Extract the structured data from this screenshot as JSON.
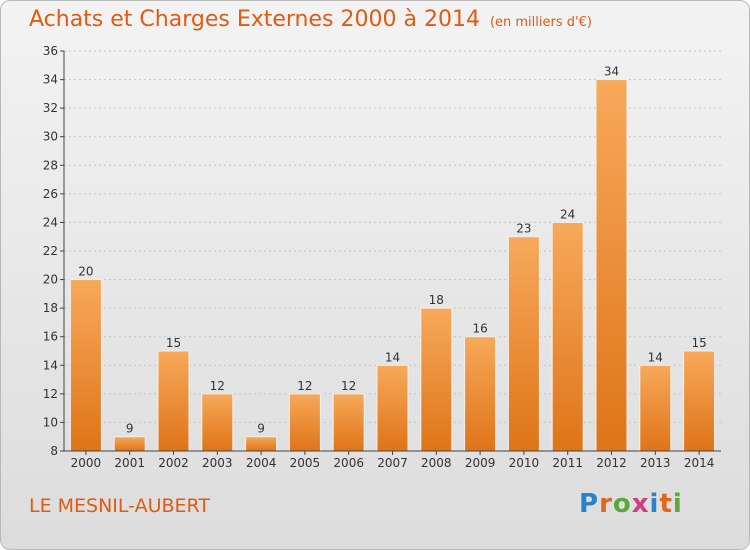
{
  "header": {
    "title": "Achats et Charges Externes 2000 à 2014",
    "unit": "(en milliers d'€)"
  },
  "footer": {
    "commune": "LE MESNIL-AUBERT",
    "logo_text": "Proxiti"
  },
  "colors": {
    "accent": "#e05a12",
    "bar_top": "#f7a95a",
    "bar_bottom": "#e0771c",
    "axis": "#444444",
    "grid": "#bdbdbd"
  },
  "chart_data": {
    "type": "bar",
    "title": "Achats et Charges Externes 2000 à 2014",
    "xlabel": "",
    "ylabel": "",
    "categories": [
      "2000",
      "2001",
      "2002",
      "2003",
      "2004",
      "2005",
      "2006",
      "2007",
      "2008",
      "2009",
      "2010",
      "2011",
      "2012",
      "2013",
      "2014"
    ],
    "values": [
      20,
      9,
      15,
      12,
      9,
      12,
      12,
      14,
      18,
      16,
      23,
      24,
      34,
      14,
      15
    ],
    "ylim": [
      8,
      36
    ],
    "yticks": [
      8,
      10,
      12,
      14,
      16,
      18,
      20,
      22,
      24,
      26,
      28,
      30,
      32,
      34,
      36
    ],
    "grid": true,
    "data_labels": true
  }
}
